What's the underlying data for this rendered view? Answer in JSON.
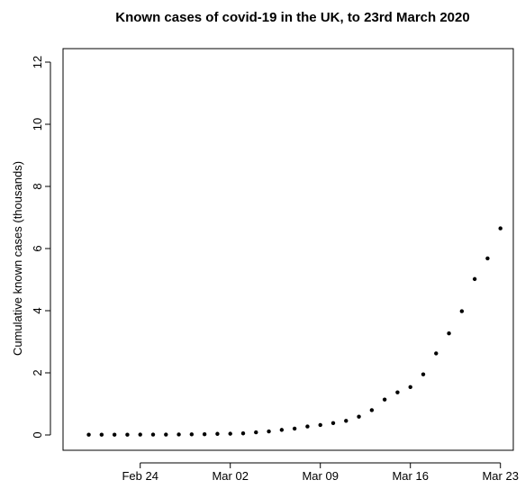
{
  "chart_data": {
    "type": "scatter",
    "title": "Known cases of covid-19 in the UK, to 23rd March 2020",
    "xlabel": "",
    "ylabel": "Cumulative known cases (thousands)",
    "x_is_date": true,
    "xlim": [
      "2020-02-18",
      "2020-03-24"
    ],
    "ylim": [
      0,
      13
    ],
    "xticks": [
      {
        "date": "2020-02-24",
        "label": "Feb 24"
      },
      {
        "date": "2020-03-02",
        "label": "Mar 02"
      },
      {
        "date": "2020-03-09",
        "label": "Mar 09"
      },
      {
        "date": "2020-03-16",
        "label": "Mar 16"
      },
      {
        "date": "2020-03-23",
        "label": "Mar 23"
      }
    ],
    "yticks": [
      0,
      2,
      4,
      6,
      8,
      10,
      12
    ],
    "points": [
      {
        "x": "2020-02-20",
        "y": 0.009
      },
      {
        "x": "2020-02-21",
        "y": 0.009
      },
      {
        "x": "2020-02-22",
        "y": 0.009
      },
      {
        "x": "2020-02-23",
        "y": 0.009
      },
      {
        "x": "2020-02-24",
        "y": 0.013
      },
      {
        "x": "2020-02-25",
        "y": 0.013
      },
      {
        "x": "2020-02-26",
        "y": 0.013
      },
      {
        "x": "2020-02-27",
        "y": 0.015
      },
      {
        "x": "2020-02-28",
        "y": 0.02
      },
      {
        "x": "2020-02-29",
        "y": 0.023
      },
      {
        "x": "2020-03-01",
        "y": 0.036
      },
      {
        "x": "2020-03-02",
        "y": 0.04
      },
      {
        "x": "2020-03-03",
        "y": 0.051
      },
      {
        "x": "2020-03-04",
        "y": 0.085
      },
      {
        "x": "2020-03-05",
        "y": 0.115
      },
      {
        "x": "2020-03-06",
        "y": 0.163
      },
      {
        "x": "2020-03-07",
        "y": 0.206
      },
      {
        "x": "2020-03-08",
        "y": 0.273
      },
      {
        "x": "2020-03-09",
        "y": 0.321
      },
      {
        "x": "2020-03-10",
        "y": 0.382
      },
      {
        "x": "2020-03-11",
        "y": 0.456
      },
      {
        "x": "2020-03-12",
        "y": 0.59
      },
      {
        "x": "2020-03-13",
        "y": 0.798
      },
      {
        "x": "2020-03-14",
        "y": 1.14
      },
      {
        "x": "2020-03-15",
        "y": 1.372
      },
      {
        "x": "2020-03-16",
        "y": 1.543
      },
      {
        "x": "2020-03-17",
        "y": 1.95
      },
      {
        "x": "2020-03-18",
        "y": 2.626
      },
      {
        "x": "2020-03-19",
        "y": 3.269
      },
      {
        "x": "2020-03-20",
        "y": 3.983
      },
      {
        "x": "2020-03-21",
        "y": 5.018
      },
      {
        "x": "2020-03-22",
        "y": 5.683
      },
      {
        "x": "2020-03-23",
        "y": 6.65
      }
    ]
  }
}
